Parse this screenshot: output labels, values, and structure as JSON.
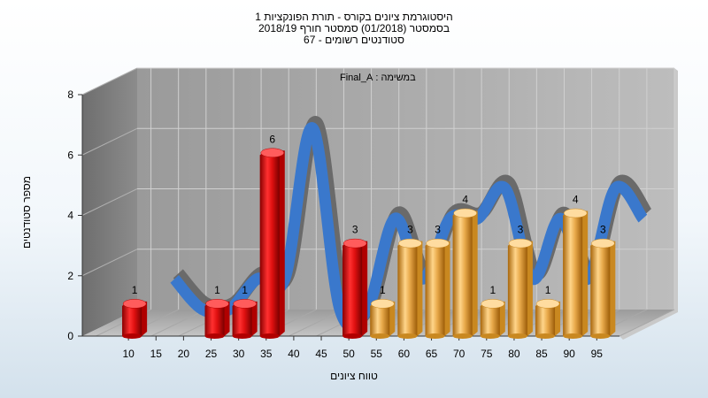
{
  "chart_data": {
    "type": "bar",
    "title_lines": [
      "היסטוגרמת ציונים בקורס - תורת הפונקציות 1",
      "בסמסטר  (01/2018)  סמסטר חורף  2018/19",
      "סטודנטים רשומים - 67"
    ],
    "annotation": "במשימה : Final_A",
    "xlabel": "טווח ציונים",
    "ylabel": "מספר סטודנטים",
    "ylim": [
      0,
      8
    ],
    "yticks": [
      "0",
      "2",
      "4",
      "6",
      "8"
    ],
    "categories": [
      "10",
      "15",
      "20",
      "25",
      "30",
      "35",
      "40",
      "45",
      "50",
      "55",
      "60",
      "65",
      "70",
      "75",
      "80",
      "85",
      "90",
      "95"
    ],
    "values": [
      1,
      0,
      0,
      1,
      1,
      6,
      0,
      0,
      3,
      1,
      3,
      3,
      4,
      1,
      3,
      1,
      4,
      3
    ],
    "data_labels": [
      "1",
      "",
      "",
      "1",
      "1",
      "6",
      "",
      "",
      "3",
      "1",
      "3",
      "3",
      "4",
      "1",
      "3",
      "1",
      "4",
      "3"
    ],
    "failing_color": "#e01010",
    "passing_color": "#e8a94a",
    "trend_color": "#3a78cc",
    "trend_shadow_color": "#6a6a6a",
    "grid": true
  }
}
